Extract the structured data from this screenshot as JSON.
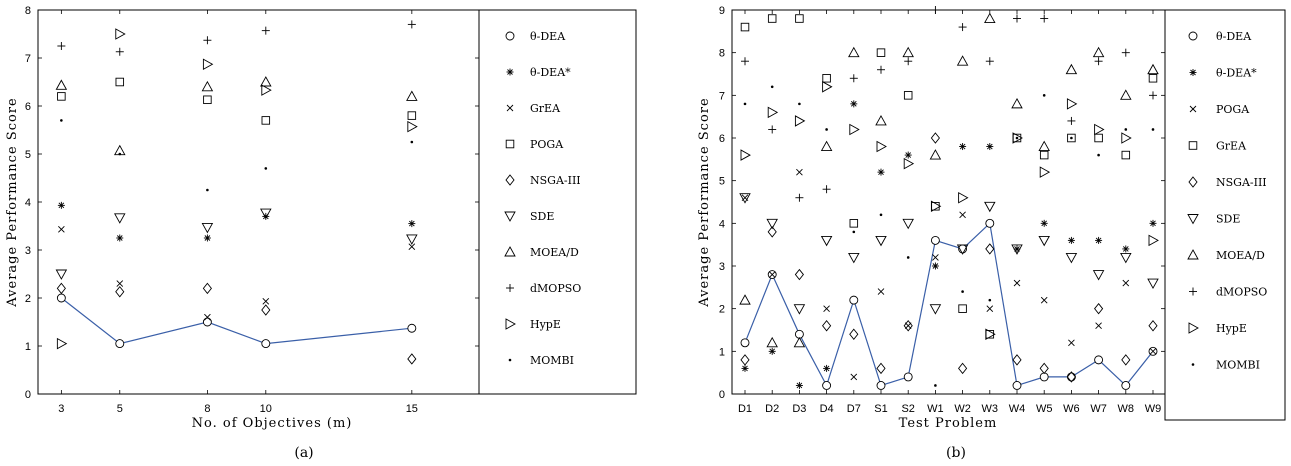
{
  "chart_data": [
    {
      "type": "scatter",
      "panel_label": "(a)",
      "xlabel": "No. of Objectives (m)",
      "ylabel": "Average Performance Score",
      "x": [
        3,
        5,
        8,
        10,
        15
      ],
      "xticks": [
        "3",
        "5",
        "8",
        "10",
        "15"
      ],
      "xlim": [
        2.2,
        17.3
      ],
      "ylim": [
        0,
        8
      ],
      "yticks": [
        "0",
        "1",
        "2",
        "3",
        "4",
        "5",
        "6",
        "7",
        "8"
      ],
      "grid": false,
      "legend_position": "right",
      "series": [
        {
          "name": "θ-DEA",
          "marker": "circle",
          "line": true,
          "values": [
            2.0,
            1.05,
            1.5,
            1.05,
            1.37
          ]
        },
        {
          "name": "θ-DEA*",
          "marker": "asterisk",
          "values": [
            3.93,
            3.25,
            3.25,
            3.7,
            3.55
          ]
        },
        {
          "name": "GrEA",
          "marker": "x",
          "values": [
            3.43,
            2.3,
            1.6,
            1.93,
            3.07
          ]
        },
        {
          "name": "POGA",
          "marker": "square",
          "values": [
            6.2,
            6.5,
            6.13,
            5.7,
            5.8
          ]
        },
        {
          "name": "NSGA-III",
          "marker": "diamond",
          "values": [
            2.2,
            2.13,
            2.2,
            1.75,
            0.73
          ]
        },
        {
          "name": "SDE",
          "marker": "tri-down",
          "values": [
            2.5,
            3.67,
            3.47,
            3.77,
            3.23
          ]
        },
        {
          "name": "MOEA/D",
          "marker": "tri-up",
          "values": [
            6.43,
            5.07,
            6.4,
            6.5,
            6.2
          ]
        },
        {
          "name": "dMOPSO",
          "marker": "plus",
          "values": [
            7.25,
            7.13,
            7.37,
            7.57,
            7.7
          ]
        },
        {
          "name": "HypE",
          "marker": "tri-right",
          "values": [
            1.05,
            7.5,
            6.87,
            6.33,
            5.57
          ]
        },
        {
          "name": "MOMBI",
          "marker": "dot",
          "values": [
            5.7,
            5.0,
            4.25,
            4.7,
            5.25
          ]
        }
      ]
    },
    {
      "type": "scatter",
      "panel_label": "(b)",
      "xlabel": "Test Problem",
      "ylabel": "Average Performance Score",
      "categories": [
        "D1",
        "D2",
        "D3",
        "D4",
        "D7",
        "S1",
        "S2",
        "W1",
        "W2",
        "W3",
        "W4",
        "W5",
        "W6",
        "W7",
        "W8",
        "W9"
      ],
      "ylim": [
        0,
        9
      ],
      "yticks": [
        "0",
        "1",
        "2",
        "3",
        "4",
        "5",
        "6",
        "7",
        "8",
        "9"
      ],
      "grid": false,
      "legend_position": "right",
      "series": [
        {
          "name": "θ-DEA",
          "marker": "circle",
          "line": true,
          "values": [
            1.2,
            2.8,
            1.4,
            0.2,
            2.2,
            0.2,
            0.4,
            3.6,
            3.4,
            4.0,
            0.2,
            0.4,
            0.4,
            0.8,
            0.2,
            1.0
          ]
        },
        {
          "name": "θ-DEA*",
          "marker": "asterisk",
          "values": [
            0.6,
            1.0,
            0.2,
            0.6,
            6.8,
            5.2,
            5.6,
            3.0,
            5.8,
            5.8,
            3.4,
            4.0,
            3.6,
            3.6,
            3.4,
            4.0
          ]
        },
        {
          "name": "POGA",
          "marker": "x",
          "values": [
            4.6,
            2.8,
            5.2,
            2.0,
            0.4,
            2.4,
            1.6,
            3.2,
            4.2,
            2.0,
            2.6,
            2.2,
            1.2,
            1.6,
            2.6,
            1.0
          ]
        },
        {
          "name": "GrEA",
          "marker": "square",
          "values": [
            8.6,
            8.8,
            8.8,
            7.4,
            4.0,
            8.0,
            7.0,
            4.4,
            2.0,
            1.4,
            6.0,
            5.6,
            6.0,
            6.0,
            5.6,
            7.4
          ]
        },
        {
          "name": "NSGA-III",
          "marker": "diamond",
          "values": [
            0.8,
            3.8,
            2.8,
            1.6,
            1.4,
            0.6,
            1.6,
            6.0,
            0.6,
            3.4,
            0.8,
            0.6,
            0.4,
            2.0,
            0.8,
            1.6
          ]
        },
        {
          "name": "SDE",
          "marker": "tri-down",
          "values": [
            4.6,
            4.0,
            2.0,
            3.6,
            3.2,
            3.6,
            4.0,
            2.0,
            3.4,
            4.4,
            3.4,
            3.6,
            3.2,
            2.8,
            3.2,
            2.6
          ]
        },
        {
          "name": "MOEA/D",
          "marker": "tri-up",
          "values": [
            2.2,
            1.2,
            1.2,
            5.8,
            8.0,
            6.4,
            8.0,
            5.6,
            7.8,
            8.8,
            6.8,
            5.8,
            7.6,
            8.0,
            7.0,
            7.6
          ]
        },
        {
          "name": "dMOPSO",
          "marker": "plus",
          "values": [
            7.8,
            6.2,
            4.6,
            4.8,
            7.4,
            7.6,
            7.8,
            9.0,
            8.6,
            7.8,
            8.8,
            8.8,
            6.4,
            7.8,
            8.0,
            7.0
          ]
        },
        {
          "name": "HypE",
          "marker": "tri-right",
          "values": [
            5.6,
            6.6,
            6.4,
            7.2,
            6.2,
            5.8,
            5.4,
            4.4,
            4.6,
            1.4,
            6.0,
            5.2,
            6.8,
            6.2,
            6.0,
            3.6
          ]
        },
        {
          "name": "MOMBI",
          "marker": "dot",
          "values": [
            6.8,
            7.2,
            6.8,
            6.2,
            3.8,
            4.2,
            3.2,
            0.2,
            2.4,
            2.2,
            6.0,
            7.0,
            6.0,
            5.6,
            6.2,
            6.2
          ]
        }
      ]
    }
  ],
  "legend_a_labels": [
    "θ-DEA",
    "θ-DEA*",
    "GrEA",
    "POGA",
    "NSGA-III",
    "SDE",
    "MOEA/D",
    "dMOPSO",
    "HypE",
    "MOMBI"
  ],
  "legend_b_labels": [
    "θ-DEA",
    "θ-DEA*",
    "POGA",
    "GrEA",
    "NSGA-III",
    "SDE",
    "MOEA/D",
    "dMOPSO",
    "HypE",
    "MOMBI"
  ],
  "colors": {
    "line": "#3a5fa8",
    "marker": "#000000"
  }
}
